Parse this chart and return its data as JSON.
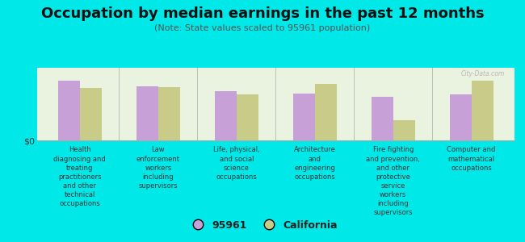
{
  "title": "Occupation by median earnings in the past 12 months",
  "subtitle": "(Note: State values scaled to 95961 population)",
  "categories": [
    "Health\ndiagnosing and\ntreating\npractitioners\nand other\ntechnical\noccupations",
    "Law\nenforcement\nworkers\nincluding\nsupervisors",
    "Life, physical,\nand social\nscience\noccupations",
    "Architecture\nand\nengineering\noccupations",
    "Fire fighting\nand prevention,\nand other\nprotective\nservice\nworkers\nincluding\nsupervisors",
    "Computer and\nmathematical\noccupations"
  ],
  "values_95961": [
    0.82,
    0.75,
    0.68,
    0.65,
    0.6,
    0.63
  ],
  "values_california": [
    0.72,
    0.73,
    0.63,
    0.78,
    0.28,
    0.82
  ],
  "color_95961": "#c8a0d8",
  "color_california": "#c8cc88",
  "background_color": "#00e8e8",
  "plot_bg_color": "#eaf2e0",
  "ylabel": "$0",
  "watermark": "City-Data.com",
  "legend_label_95961": "95961",
  "legend_label_california": "California",
  "title_fontsize": 13,
  "subtitle_fontsize": 8
}
